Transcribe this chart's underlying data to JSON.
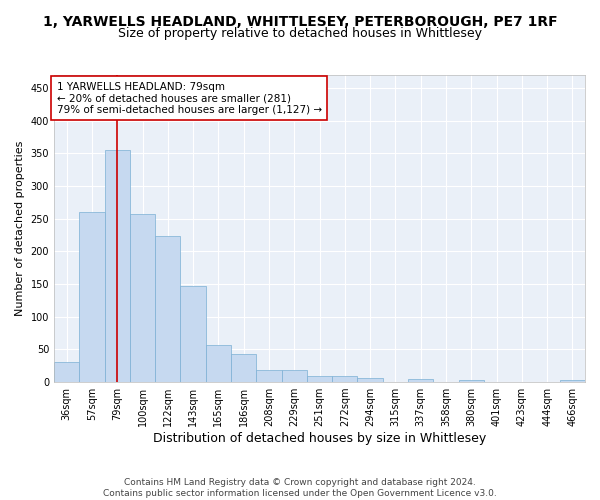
{
  "title_line1": "1, YARWELLS HEADLAND, WHITTLESEY, PETERBOROUGH, PE7 1RF",
  "title_line2": "Size of property relative to detached houses in Whittlesey",
  "xlabel": "Distribution of detached houses by size in Whittlesey",
  "ylabel": "Number of detached properties",
  "categories": [
    "36sqm",
    "57sqm",
    "79sqm",
    "100sqm",
    "122sqm",
    "143sqm",
    "165sqm",
    "186sqm",
    "208sqm",
    "229sqm",
    "251sqm",
    "272sqm",
    "294sqm",
    "315sqm",
    "337sqm",
    "358sqm",
    "380sqm",
    "401sqm",
    "423sqm",
    "444sqm",
    "466sqm"
  ],
  "bar_values": [
    31,
    261,
    355,
    258,
    224,
    147,
    57,
    43,
    18,
    18,
    10,
    10,
    7,
    0,
    5,
    0,
    3,
    0,
    0,
    0,
    3
  ],
  "bar_color": "#c6d9f0",
  "bar_edge_color": "#7bafd4",
  "red_line_index": 2,
  "red_line_color": "#cc0000",
  "annotation_text": "1 YARWELLS HEADLAND: 79sqm\n← 20% of detached houses are smaller (281)\n79% of semi-detached houses are larger (1,127) →",
  "annotation_box_color": "#ffffff",
  "annotation_box_edge_color": "#cc0000",
  "ylim": [
    0,
    470
  ],
  "yticks": [
    0,
    50,
    100,
    150,
    200,
    250,
    300,
    350,
    400,
    450
  ],
  "footer": "Contains HM Land Registry data © Crown copyright and database right 2024.\nContains public sector information licensed under the Open Government Licence v3.0.",
  "background_color": "#ffffff",
  "plot_background_color": "#eaf0f8",
  "grid_color": "#ffffff",
  "title_fontsize": 10,
  "subtitle_fontsize": 9,
  "ylabel_fontsize": 8,
  "xlabel_fontsize": 9,
  "tick_fontsize": 7,
  "annotation_fontsize": 7.5,
  "footer_fontsize": 6.5
}
